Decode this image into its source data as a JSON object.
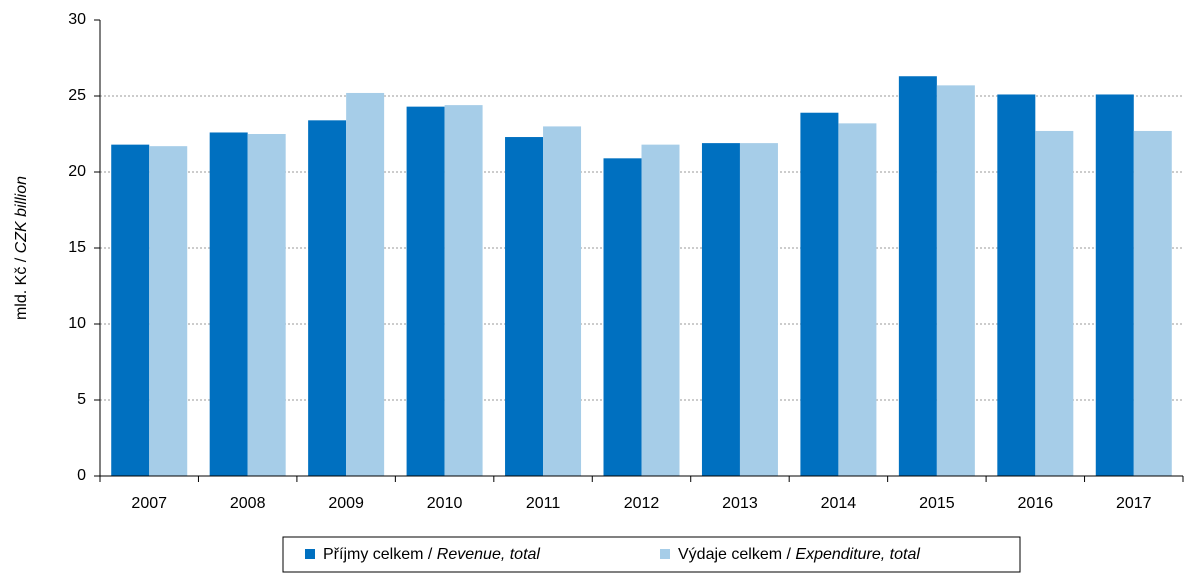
{
  "chart_data": {
    "type": "bar",
    "ylabel": "mld. Kč / CZK billion",
    "categories": [
      "2007",
      "2008",
      "2009",
      "2010",
      "2011",
      "2012",
      "2013",
      "2014",
      "2015",
      "2016",
      "2017"
    ],
    "series": [
      {
        "name": "Příjmy  celkem / Revenue, total",
        "color": "#0070c0",
        "values": [
          21.8,
          22.6,
          23.4,
          24.3,
          22.3,
          20.9,
          21.9,
          23.9,
          26.3,
          25.1,
          25.1
        ]
      },
      {
        "name": "Výdaje celkem / Expenditure, total",
        "color": "#a6cde8",
        "values": [
          21.7,
          22.5,
          25.2,
          24.4,
          23.0,
          21.8,
          21.9,
          23.2,
          25.7,
          22.7,
          22.7
        ]
      }
    ],
    "ylim": [
      0,
      30
    ],
    "yticks": [
      0,
      5,
      10,
      15,
      20,
      25,
      30
    ],
    "grid": true,
    "legend": "bottom"
  }
}
